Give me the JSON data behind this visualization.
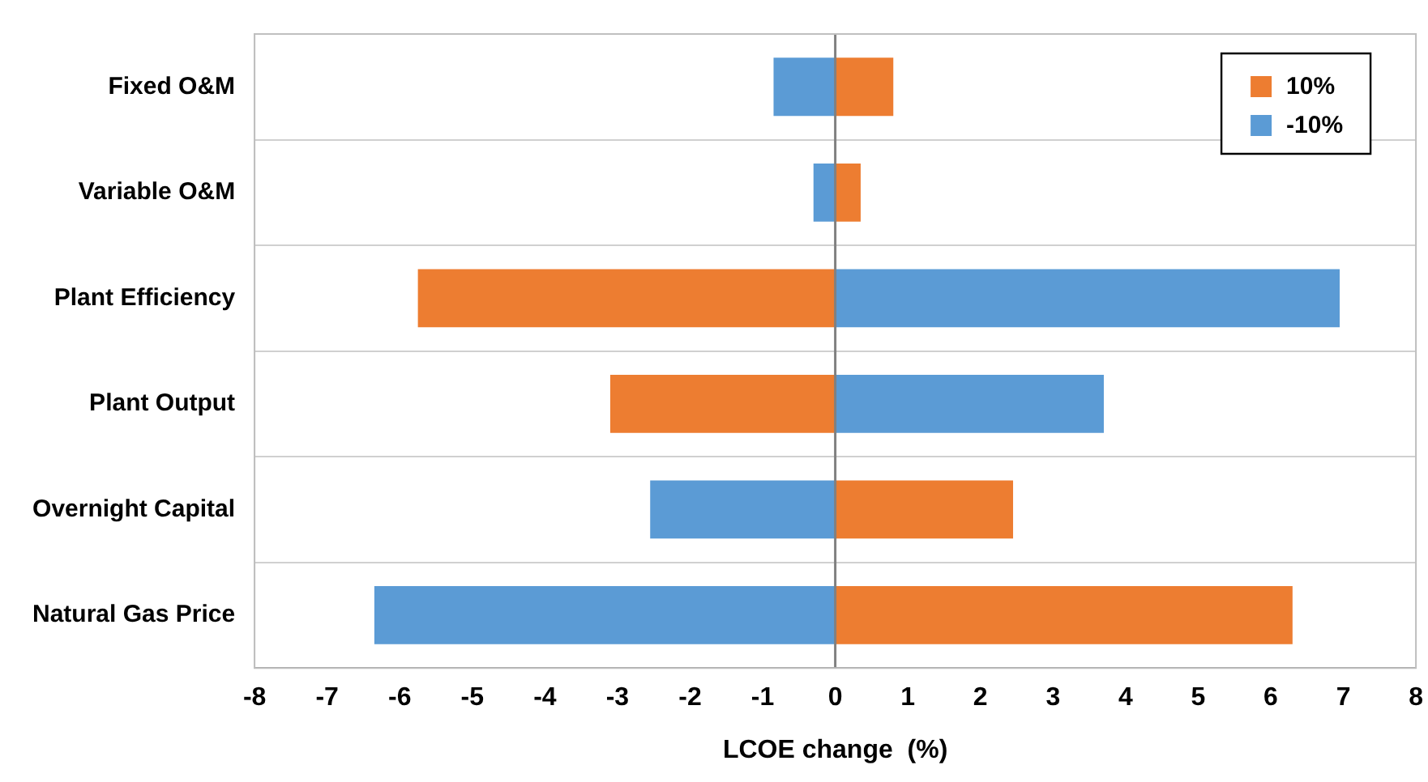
{
  "chart_data": {
    "type": "bar",
    "orientation": "horizontal",
    "stacked": true,
    "xlabel": "LCOE change  (%)",
    "categories": [
      "Fixed O&M",
      "Variable O&M",
      "Plant Efficiency",
      "Plant Output",
      "Overnight Capital",
      "Natural Gas Price"
    ],
    "series": [
      {
        "name": "10%",
        "color": "#ed7d31",
        "values": [
          0.8,
          0.35,
          -5.75,
          -3.1,
          2.45,
          6.3
        ]
      },
      {
        "name": "-10%",
        "color": "#5b9bd5",
        "values": [
          -0.85,
          -0.3,
          6.95,
          3.7,
          -2.55,
          -6.35
        ]
      }
    ],
    "xlim": [
      -8,
      8
    ],
    "xticks": [
      -8,
      -7,
      -6,
      -5,
      -4,
      -3,
      -2,
      -1,
      0,
      1,
      2,
      3,
      4,
      5,
      6,
      7,
      8
    ],
    "grid": "y",
    "legend": "top right"
  }
}
